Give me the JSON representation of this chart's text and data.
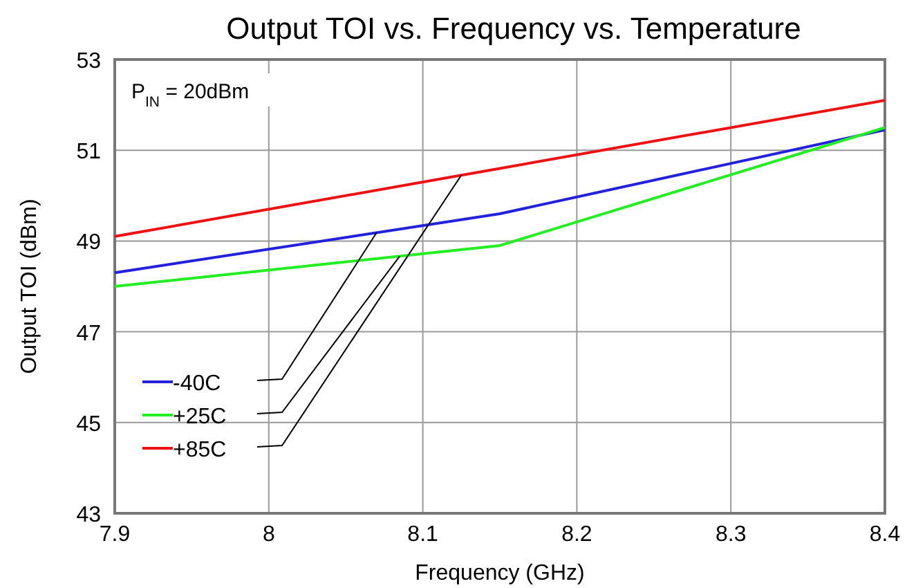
{
  "chart_data": {
    "type": "line",
    "title": "Output TOI vs. Frequency vs. Temperature",
    "xlabel": "Frequency (GHz)",
    "ylabel": "Output TOI (dBm)",
    "x": [
      7.9,
      8.15,
      8.4
    ],
    "series": [
      {
        "name": "-40C",
        "color": "#2222dd",
        "values": [
          48.3,
          49.6,
          51.45
        ]
      },
      {
        "name": "+25C",
        "color": "#22ee22",
        "values": [
          48.0,
          48.9,
          51.5
        ]
      },
      {
        "name": "+85C",
        "color": "#ee1111",
        "values": [
          49.1,
          50.6,
          52.1
        ]
      }
    ],
    "xlim": [
      7.9,
      8.4
    ],
    "xticks": [
      7.9,
      8,
      8.1,
      8.2,
      8.3,
      8.4
    ],
    "ylim": [
      43,
      53
    ],
    "yticks": [
      43,
      45,
      47,
      49,
      51,
      53
    ],
    "grid": true,
    "legend": "bottom left",
    "marker": "none",
    "line_style": "solid",
    "annotations": [
      "P$_{IN}$ = 20dBm"
    ]
  }
}
